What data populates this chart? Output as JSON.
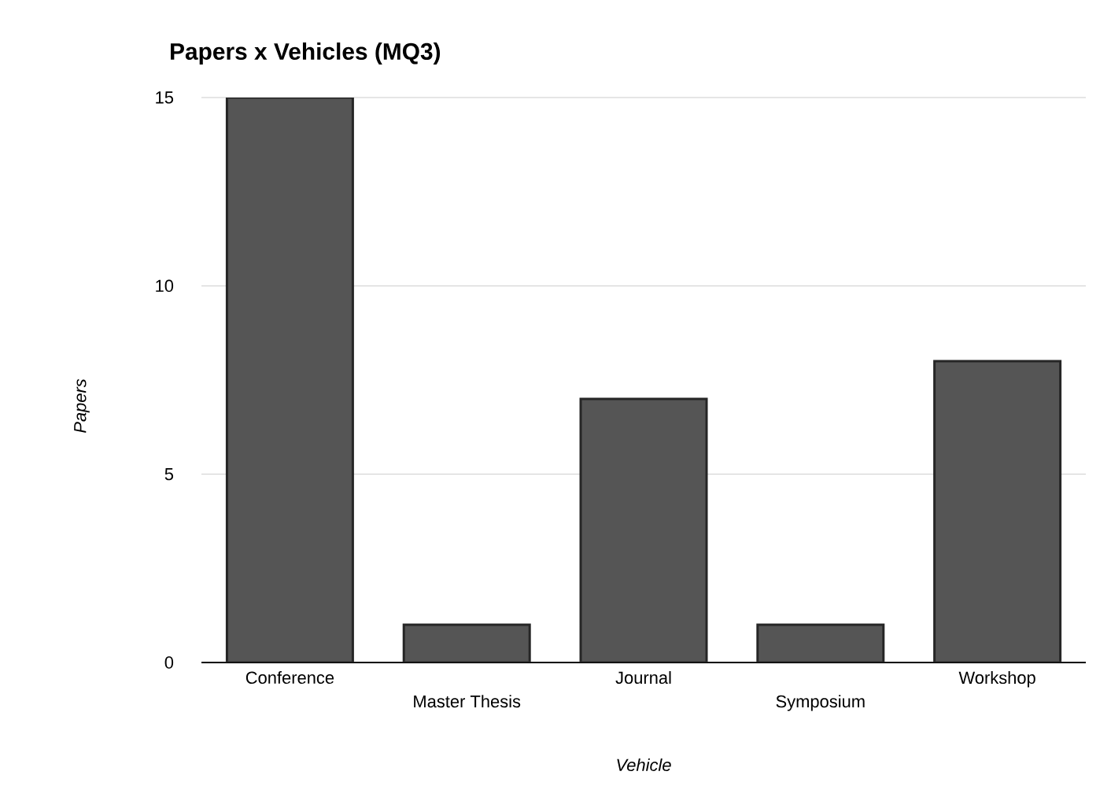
{
  "chart_data": {
    "type": "bar",
    "title": "Papers x Vehicles (MQ3)",
    "xlabel": "Vehicle",
    "ylabel": "Papers",
    "categories": [
      "Conference",
      "Master Thesis",
      "Journal",
      "Symposium",
      "Workshop"
    ],
    "values": [
      15,
      1,
      7,
      1,
      8
    ],
    "color": "#555555",
    "ylim": [
      0,
      15
    ],
    "yticks": [
      0,
      5,
      10,
      15
    ],
    "grid": "y"
  }
}
